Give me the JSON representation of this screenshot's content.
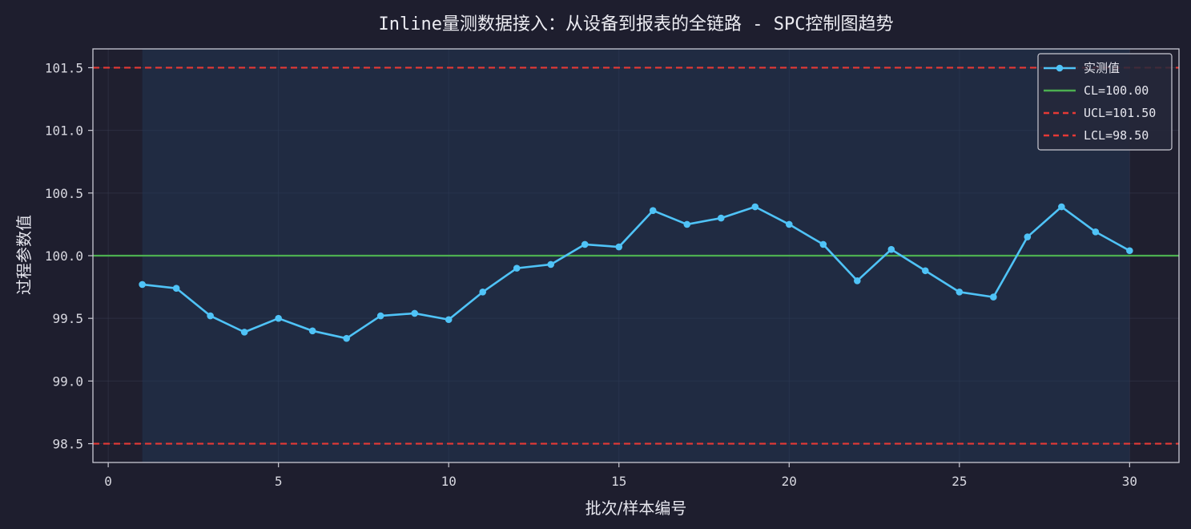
{
  "chart_data": {
    "type": "line",
    "title": "Inline量测数据接入：从设备到报表的全链路 - SPC控制图趋势",
    "xlabel": "批次/样本编号",
    "ylabel": "过程参数值",
    "xlim": [
      -0.45,
      31.45
    ],
    "ylim": [
      98.35,
      101.65
    ],
    "xticks": [
      0,
      5,
      10,
      15,
      20,
      25,
      30
    ],
    "yticks": [
      98.5,
      99.0,
      99.5,
      100.0,
      100.5,
      101.0,
      101.5
    ],
    "xtick_labels": [
      "0",
      "5",
      "10",
      "15",
      "20",
      "25",
      "30"
    ],
    "ytick_labels": [
      "98.5",
      "99.0",
      "99.5",
      "100.0",
      "100.5",
      "101.0",
      "101.5"
    ],
    "grid": true,
    "legend_position": "top-right",
    "series": [
      {
        "name": "实测值",
        "color": "#4fc3f7",
        "x": [
          1,
          2,
          3,
          4,
          5,
          6,
          7,
          8,
          9,
          10,
          11,
          12,
          13,
          14,
          15,
          16,
          17,
          18,
          19,
          20,
          21,
          22,
          23,
          24,
          25,
          26,
          27,
          28,
          29,
          30
        ],
        "values": [
          99.77,
          99.74,
          99.52,
          99.39,
          99.5,
          99.4,
          99.34,
          99.52,
          99.54,
          99.49,
          99.71,
          99.9,
          99.93,
          100.09,
          100.07,
          100.36,
          100.25,
          100.3,
          100.39,
          100.25,
          100.09,
          99.8,
          100.05,
          99.88,
          99.71,
          99.67,
          100.15,
          100.39,
          100.19,
          100.04
        ]
      }
    ],
    "control_lines": [
      {
        "name": "CL=100.00",
        "value": 100.0,
        "color": "#4caf50",
        "style": "solid"
      },
      {
        "name": "UCL=101.50",
        "value": 101.5,
        "color": "#e53935",
        "style": "dashed"
      },
      {
        "name": "LCL=98.50",
        "value": 98.5,
        "color": "#e53935",
        "style": "dashed"
      }
    ],
    "shaded_region": {
      "x_from": 1,
      "x_to": 30,
      "color": "#223a5c"
    }
  }
}
